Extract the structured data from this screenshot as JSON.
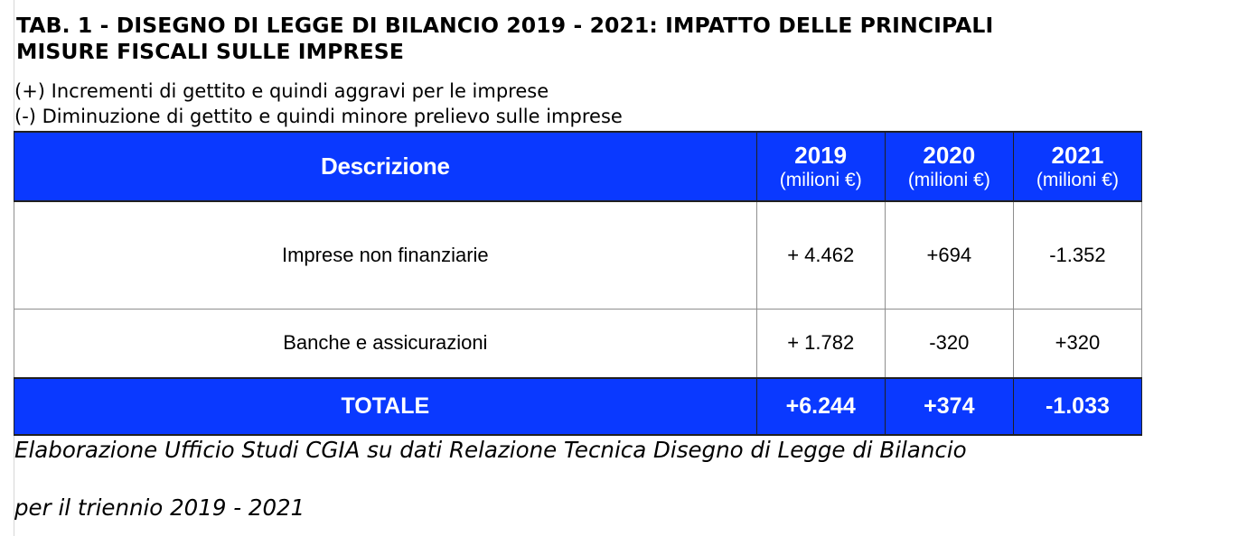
{
  "title": {
    "line1": "TAB. 1 - DISEGNO DI LEGGE DI BILANCIO 2019 - 2021: IMPATTO DELLE PRINCIPALI",
    "line2": "MISURE FISCALI SULLE IMPRESE"
  },
  "legend": {
    "plus": "(+) Incrementi di gettito e quindi aggravi per le imprese",
    "minus": "(-) Diminuzione di gettito e quindi minore prelievo sulle imprese"
  },
  "table": {
    "header": {
      "description": "Descrizione",
      "years": [
        {
          "year": "2019",
          "unit": "(milioni €)"
        },
        {
          "year": "2020",
          "unit": "(milioni €)"
        },
        {
          "year": "2021",
          "unit": "(milioni €)"
        }
      ]
    },
    "rows": [
      {
        "label": "Imprese non finanziarie",
        "values": [
          "+ 4.462",
          "+694",
          "-1.352"
        ]
      },
      {
        "label": "Banche e assicurazioni",
        "values": [
          "+ 1.782",
          "-320",
          "+320"
        ]
      }
    ],
    "total": {
      "label": "TOTALE",
      "values": [
        "+6.244",
        "+374",
        "-1.033"
      ]
    }
  },
  "source": {
    "line1": "Elaborazione Ufficio Studi CGIA su dati Relazione Tecnica Disegno di Legge di Bilancio",
    "line2": "per il triennio 2019 - 2021"
  },
  "colors": {
    "header_background": "#0a39ff",
    "header_text": "#ffffff"
  }
}
